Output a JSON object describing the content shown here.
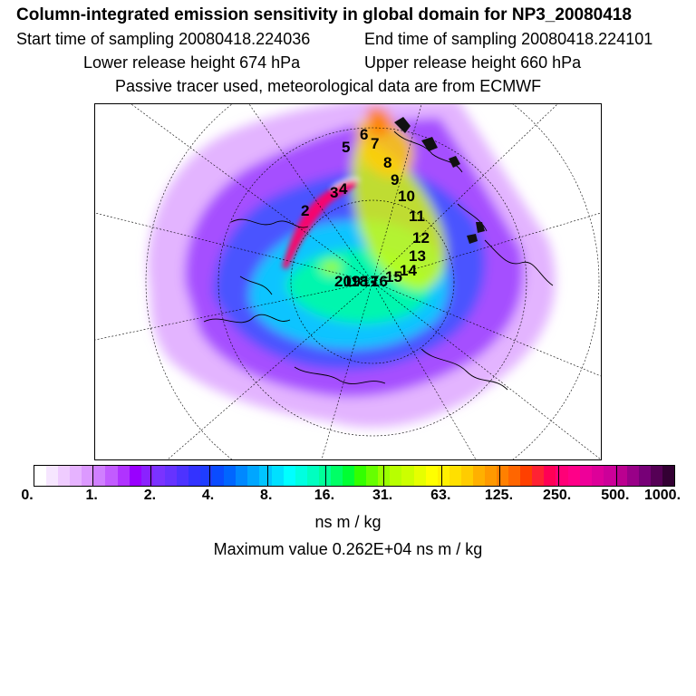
{
  "header": {
    "title": "Column-integrated emission sensitivity in global domain for NP3_20080418",
    "start_label": "Start time of sampling 20080418.224036",
    "end_label": "End time of sampling 20080418.224101",
    "lower_label": "Lower release height  674 hPa",
    "upper_label": "Upper release height  660 hPa",
    "note": "Passive tracer used, meteorological data are from ECMWF"
  },
  "colorbar": {
    "ticks": [
      "0.",
      "1.",
      "2.",
      "4.",
      "8.",
      "16.",
      "31.",
      "63.",
      "125.",
      "250.",
      "500.",
      "1000."
    ],
    "colors": [
      "#ffffff",
      "#f6e6ff",
      "#efccff",
      "#e6b3ff",
      "#dc99ff",
      "#d07fff",
      "#c25cff",
      "#b033ff",
      "#9900ff",
      "#8a22ff",
      "#7a33ff",
      "#6633ff",
      "#4d33ff",
      "#3333ff",
      "#1f3dff",
      "#0a4cff",
      "#0066ff",
      "#0088ff",
      "#00a6ff",
      "#00c4ff",
      "#00e0ff",
      "#00ffff",
      "#00ffe0",
      "#00ffc0",
      "#00ff99",
      "#00ff66",
      "#00ff33",
      "#33ff00",
      "#66ff00",
      "#99ff00",
      "#b8ff00",
      "#ccff00",
      "#e6ff00",
      "#ffff00",
      "#fff000",
      "#ffe000",
      "#ffcc00",
      "#ffb000",
      "#ff9900",
      "#ff8000",
      "#ff6600",
      "#ff4000",
      "#ff2233",
      "#ff0055",
      "#ff0077",
      "#ff0088",
      "#ee0099",
      "#dd0099",
      "#cc0099",
      "#bb0090",
      "#990088",
      "#770077",
      "#550055",
      "#330033"
    ],
    "unit": "ns m / kg",
    "max_value": "Maximum value  0.262E+04 ns m / kg"
  },
  "map": {
    "trajectory_labels": [
      "2",
      "3",
      "4",
      "5",
      "6",
      "7",
      "8",
      "9",
      "10",
      "11",
      "12",
      "13",
      "14",
      "15",
      "16",
      "17",
      "18",
      "19",
      "20"
    ]
  }
}
